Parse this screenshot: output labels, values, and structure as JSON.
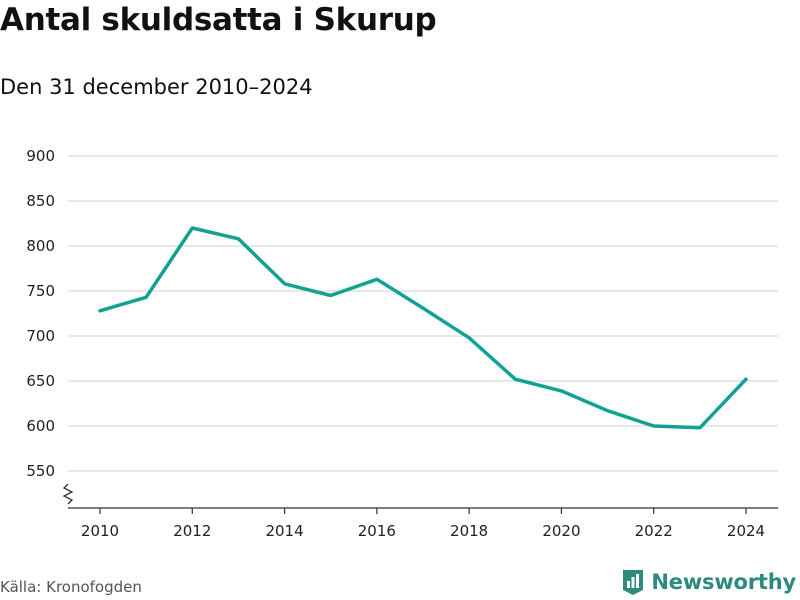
{
  "header": {
    "title": "Antal skuldsatta i Skurup",
    "subtitle": "Den 31 december 2010–2024"
  },
  "footer": {
    "source": "Källa: Kronofogden",
    "brand": "Newsworthy",
    "brand_icon": "newsworthy-logo-icon"
  },
  "colors": {
    "line": "#12a293",
    "grid": "#d9d9d9",
    "axis": "#333333",
    "brand": "#2e8a7f"
  },
  "chart_data": {
    "type": "line",
    "title": "Antal skuldsatta i Skurup",
    "subtitle": "Den 31 december 2010–2024",
    "xlabel": "",
    "ylabel": "",
    "x": [
      2010,
      2011,
      2012,
      2013,
      2014,
      2015,
      2016,
      2017,
      2018,
      2019,
      2020,
      2021,
      2022,
      2023,
      2024
    ],
    "y": [
      728,
      743,
      820,
      808,
      758,
      745,
      763,
      731,
      698,
      652,
      639,
      617,
      600,
      598,
      652
    ],
    "xlim": [
      2010,
      2024
    ],
    "ylim": [
      510,
      900
    ],
    "x_ticks": [
      "2010",
      "2012",
      "2014",
      "2016",
      "2018",
      "2020",
      "2022",
      "2024"
    ],
    "y_ticks": [
      "900",
      "850",
      "800",
      "750",
      "700",
      "650",
      "600",
      "550"
    ],
    "axis_break": true,
    "grid": true,
    "legend": false
  }
}
